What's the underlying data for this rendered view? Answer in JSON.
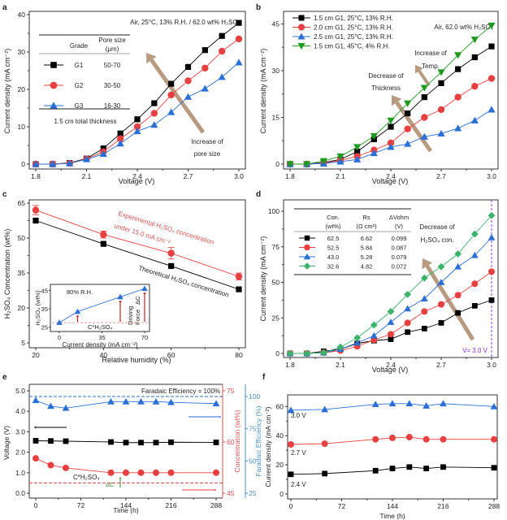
{
  "chart_data": [
    {
      "panel": "a",
      "type": "line",
      "xlabel": "Voltage (V)",
      "ylabel": "Current density (mA cm⁻²)",
      "xlim": [
        1.8,
        3.0
      ],
      "ylim": [
        0,
        40
      ],
      "xticks": [
        "1.8",
        "2.1",
        "2.4",
        "2.7",
        "3.0"
      ],
      "yticks": [
        "0",
        "10",
        "20",
        "30",
        "40"
      ],
      "annotation_top": "Air, 25°C, 13% R.H. / 62.0 wt% H₂SO₄",
      "arrow_label": [
        "Increase of",
        "pore size"
      ],
      "legend_table": {
        "headers": [
          "Grade",
          "Pore size",
          "(μm)"
        ],
        "rows": [
          [
            "G1",
            "50-70"
          ],
          [
            "G2",
            "30-50"
          ],
          [
            "G3",
            "16-30"
          ]
        ],
        "footer": "1.5 cm total thickness"
      },
      "x": [
        1.8,
        1.9,
        2.0,
        2.1,
        2.2,
        2.3,
        2.4,
        2.5,
        2.6,
        2.7,
        2.8,
        2.9,
        3.0
      ],
      "series": [
        {
          "name": "G1",
          "color": "#000000",
          "marker": "square",
          "values": [
            0,
            0,
            0.3,
            1.5,
            4.2,
            8.2,
            12,
            16.3,
            21.5,
            26,
            30.5,
            34.3,
            37.8
          ]
        },
        {
          "name": "G2",
          "color": "#e84040",
          "marker": "circle",
          "values": [
            0,
            0,
            0.2,
            1.4,
            3.3,
            6.8,
            10,
            13.6,
            18.5,
            22.3,
            25.7,
            30.2,
            33.5
          ]
        },
        {
          "name": "G3",
          "color": "#2a6fd6",
          "marker": "triangle",
          "values": [
            0,
            0,
            0.2,
            1.3,
            2.7,
            5.5,
            8.8,
            10.5,
            13.9,
            18,
            20.2,
            23.3,
            27.2
          ]
        }
      ]
    },
    {
      "panel": "b",
      "type": "line",
      "xlabel": "Voltage (V)",
      "ylabel": "Current density (mA cm⁻²)",
      "xlim": [
        1.8,
        3.0
      ],
      "ylim": [
        0,
        48
      ],
      "xticks": [
        "1.8",
        "2.1",
        "2.4",
        "2.7",
        "3.0"
      ],
      "yticks": [
        "0",
        "15",
        "30",
        "45"
      ],
      "annotation_top": "Air, 62.0 wt% H₂SO₄",
      "arrow_labels": [
        [
          "Increase of",
          "Temp."
        ],
        [
          "Decrease of",
          "Thickness"
        ]
      ],
      "x": [
        1.8,
        1.9,
        2.0,
        2.1,
        2.2,
        2.3,
        2.4,
        2.5,
        2.6,
        2.7,
        2.8,
        2.9,
        3.0
      ],
      "series": [
        {
          "name": "1.5 cm G1, 25°C, 13% R.H.",
          "color": "#000000",
          "marker": "square",
          "values": [
            0,
            0,
            0.5,
            1.5,
            4,
            8,
            12,
            16.3,
            21.5,
            26,
            30.5,
            34.3,
            37.8
          ]
        },
        {
          "name": "2.0 cm G1, 25°C, 13% R.H.",
          "color": "#e84040",
          "marker": "circle",
          "values": [
            0,
            0,
            0.3,
            1.2,
            2.5,
            4.5,
            6.8,
            11.3,
            15,
            17.5,
            21.5,
            25,
            27.5
          ]
        },
        {
          "name": "2.5 cm G1, 25°C, 13% R.H.",
          "color": "#2a6fd6",
          "marker": "triangle",
          "values": [
            0,
            0,
            0.2,
            0.8,
            1.5,
            3.5,
            5.5,
            6.5,
            8.8,
            9.8,
            11.5,
            14,
            17.5
          ]
        },
        {
          "name": "1.5 cm G1, 45°C,   4% R.H.",
          "color": "#1e9b1e",
          "marker": "triangle-down",
          "values": [
            0,
            0,
            1,
            2.5,
            5.5,
            9,
            14,
            19.5,
            24.5,
            29.5,
            35,
            40,
            44.5
          ]
        }
      ]
    },
    {
      "panel": "c",
      "type": "line",
      "xlabel": "Relative humidity (%)",
      "ylabel": "H₂SO₄ Concentration (wt%)",
      "xlim": [
        20,
        80
      ],
      "ylim": [
        5,
        65
      ],
      "xticks": [
        "20",
        "40",
        "60",
        "80"
      ],
      "yticks": [
        "5",
        "20",
        "35",
        "50",
        "65"
      ],
      "annotations": [
        "Experimental H₂SO₄ concentration",
        "under 15.0 mA cm⁻²",
        "Theoretical H₂SO₄ concentration"
      ],
      "x": [
        20,
        40,
        60,
        80
      ],
      "series": [
        {
          "name": "Experimental",
          "color": "#e84040",
          "marker": "circle",
          "values": [
            62,
            51.5,
            43.5,
            33.5
          ],
          "errors": [
            2,
            1.5,
            2.5,
            1.5
          ]
        },
        {
          "name": "Theoretical",
          "color": "#000000",
          "marker": "square",
          "values": [
            57.5,
            47.5,
            38,
            28
          ]
        }
      ],
      "inset": {
        "title": "80% R.H.",
        "xlabel": "Current density (mA cm⁻²)",
        "ylabel": "H₂SO₄ (wt%)",
        "xlim": [
          0,
          70
        ],
        "ylim": [
          25,
          45
        ],
        "xticks": [
          "0",
          "35",
          "70"
        ],
        "yticks": [
          "25",
          "35",
          "45"
        ],
        "x": [
          0,
          15,
          50,
          70
        ],
        "values": [
          27.5,
          33.5,
          41.5,
          46
        ],
        "baseline": 27.5,
        "labels": [
          "C*H₂SO₄",
          "Driving",
          "Force",
          "ΔC"
        ]
      }
    },
    {
      "panel": "d",
      "type": "line",
      "xlabel": "Voltage (V)",
      "ylabel": "Current density (mA cm⁻²)",
      "xlim": [
        1.8,
        3.0
      ],
      "ylim": [
        0,
        100
      ],
      "xticks": [
        "1.8",
        "2.1",
        "2.4",
        "2.7",
        "3.0"
      ],
      "yticks": [
        "0",
        "25",
        "50",
        "75",
        "100"
      ],
      "arrow_label": [
        "Decrease of",
        "H₂SO₄ con."
      ],
      "vline_label": "V= 3.0 V",
      "legend_table": {
        "headers": [
          [
            "Con.",
            "(wt%)"
          ],
          [
            "Rs",
            "(Ω cm²)"
          ],
          [
            "ΔVohm",
            "(V)"
          ]
        ],
        "rows": [
          [
            "62.5",
            "6.62",
            "0.099"
          ],
          [
            "52.5",
            "5.84",
            "0.087"
          ],
          [
            "43.0",
            "5.28",
            "0.079"
          ],
          [
            "32.6",
            "4.82",
            "0.072"
          ]
        ]
      },
      "x": [
        1.8,
        1.9,
        2.0,
        2.1,
        2.2,
        2.3,
        2.4,
        2.5,
        2.6,
        2.7,
        2.8,
        2.9,
        3.0
      ],
      "series": [
        {
          "name": "62.5",
          "color": "#000000",
          "marker": "square",
          "values": [
            0,
            0,
            1.5,
            3,
            7,
            9,
            10,
            15,
            17.5,
            21.5,
            28.5,
            33.5,
            37.5
          ]
        },
        {
          "name": "52.5",
          "color": "#e84040",
          "marker": "circle",
          "values": [
            0,
            0,
            0.5,
            2,
            5,
            9.5,
            13.5,
            21.5,
            29.5,
            34.5,
            41,
            49,
            57.5
          ]
        },
        {
          "name": "43.0",
          "color": "#2a6fd6",
          "marker": "triangle",
          "values": [
            0,
            0,
            0.5,
            3,
            7.5,
            12.5,
            22,
            31.5,
            38.5,
            50,
            61,
            69,
            81.5
          ]
        },
        {
          "name": "32.6",
          "color": "#3bb36a",
          "marker": "diamond",
          "values": [
            0,
            0,
            0.5,
            4.5,
            11,
            20,
            29.5,
            41.5,
            53,
            61,
            70,
            84,
            97
          ]
        }
      ]
    },
    {
      "panel": "e",
      "type": "line",
      "xlabel": "Time (h)",
      "ylabel_left": "Voltage (V)",
      "ylabel_right1": "Concentration (wt%)",
      "ylabel_right2": "Faradaic Efficiency (%)",
      "xlim": [
        0,
        288
      ],
      "ylim_left": [
        0,
        5
      ],
      "ylim_right1": [
        45,
        75
      ],
      "ylim_right2": [
        25,
        100
      ],
      "xticks": [
        "0",
        "72",
        "144",
        "216",
        "288"
      ],
      "yticks_left": [
        "0.0",
        "1.0",
        "2.0",
        "3.0",
        "4.0",
        "5.0"
      ],
      "yticks_right1": [
        "45",
        "60",
        "75"
      ],
      "yticks_right2": [
        "25",
        "50",
        "75",
        "100"
      ],
      "annotation_top": "Faradaic Efficiency = 100%",
      "labels": [
        "C*H₂SO₄",
        "ΔC"
      ],
      "x": [
        0,
        24,
        48,
        120,
        144,
        168,
        192,
        216,
        288
      ],
      "series": [
        {
          "name": "Voltage",
          "axis": "left",
          "color": "#000000",
          "marker": "square",
          "values": [
            2.56,
            2.55,
            2.54,
            2.5,
            2.47,
            2.47,
            2.47,
            2.49,
            2.48
          ]
        },
        {
          "name": "Concentration",
          "axis": "right1",
          "color": "#e84040",
          "marker": "circle",
          "values": [
            55.2,
            53.2,
            52.4,
            51,
            51,
            51,
            51,
            51,
            51
          ]
        },
        {
          "name": "Faradaic Efficiency",
          "axis": "right2",
          "color": "#2a6fd6",
          "marker": "triangle",
          "values": [
            97,
            92.5,
            91,
            96,
            96,
            96,
            96,
            95.5,
            94.5
          ]
        }
      ],
      "reference_lines": [
        {
          "axis": "right2",
          "value": 100,
          "color": "#2a6fd6"
        },
        {
          "axis": "right1",
          "value": 48,
          "color": "#e84040"
        }
      ]
    },
    {
      "panel": "f",
      "type": "line",
      "xlabel": "Time (h)",
      "ylabel": "Current density (mA cm⁻²)",
      "xlim": [
        0,
        288
      ],
      "ylim": [
        0,
        68
      ],
      "xticks": [
        "0",
        "72",
        "144",
        "216",
        "288"
      ],
      "yticks": [
        "0",
        "20",
        "40",
        "60"
      ],
      "x": [
        0,
        48,
        120,
        144,
        168,
        192,
        216,
        288
      ],
      "series": [
        {
          "name": "3.0 V",
          "color": "#2a6fd6",
          "marker": "triangle",
          "values": [
            57.5,
            58,
            61.5,
            62,
            62,
            60.5,
            62,
            60
          ]
        },
        {
          "name": "2.7 V",
          "color": "#e84040",
          "marker": "circle",
          "values": [
            34,
            34.5,
            37.5,
            38.5,
            39,
            37.5,
            37.5,
            37.5
          ]
        },
        {
          "name": "2.4 V",
          "color": "#000000",
          "marker": "square",
          "values": [
            13.5,
            14,
            16,
            17.5,
            18.5,
            17.5,
            18.5,
            18
          ]
        }
      ]
    }
  ]
}
